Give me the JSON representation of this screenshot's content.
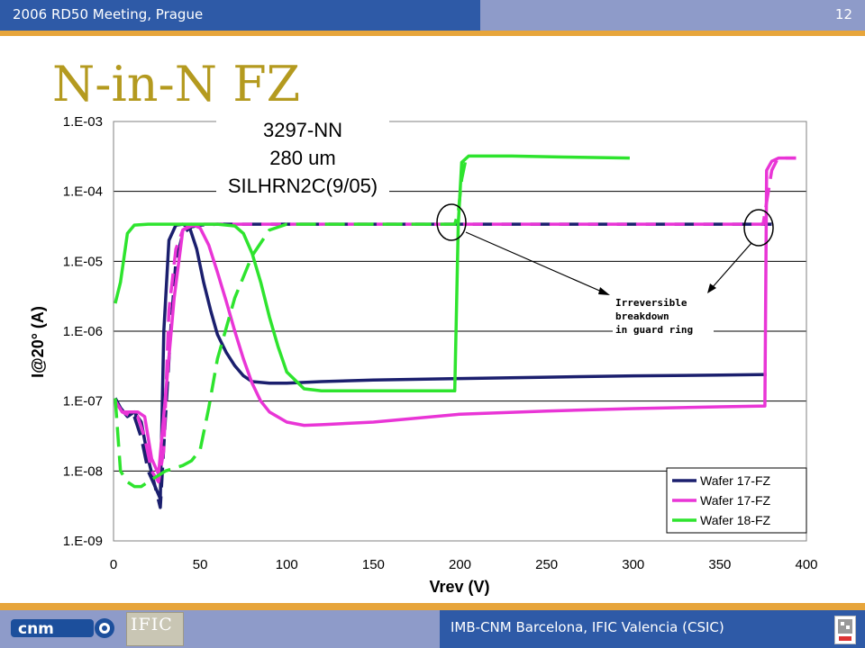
{
  "header": {
    "title": "2006 RD50 Meeting, Prague",
    "slide_number": "12"
  },
  "slide": {
    "title": "N-in-N FZ"
  },
  "footer": {
    "text": "IMB-CNM Barcelona, IFIC Valencia (CSIC)",
    "logo_left": "cnm",
    "logo_mid": "IFIC"
  },
  "colors": {
    "navy": "#1b1f6e",
    "magenta": "#e935d6",
    "green": "#2ee42e",
    "header_blue": "#2e5aa7",
    "header_light": "#8e9bc9",
    "stripe_orange": "#e7a53b",
    "title_gold": "#b49a1f"
  },
  "chart_data": {
    "type": "line",
    "xlabel": "Vrev (V)",
    "ylabel": "I@20° (A)",
    "xlim": [
      0,
      400
    ],
    "ylim": [
      1e-09,
      0.001
    ],
    "yscale": "log",
    "xticks": [
      "0",
      "50",
      "100",
      "150",
      "200",
      "250",
      "300",
      "350",
      "400"
    ],
    "yticks": [
      "1.E-09",
      "1.E-08",
      "1.E-07",
      "1.E-06",
      "1.E-05",
      "1.E-04",
      "1.E-03"
    ],
    "grid": "horizontal",
    "legend_position": "bottom-right",
    "box_labels": [
      "3297-NN",
      "280 um",
      "SILHRN2C(9/05)"
    ],
    "annotation": [
      "Irreversible",
      "breakdown",
      "in guard ring"
    ],
    "series": [
      {
        "name": "Wafer 17-FZ",
        "color": "#1b1f6e",
        "style": "solid",
        "x": [
          1,
          4,
          8,
          12,
          16,
          20,
          24,
          27,
          29,
          32,
          36,
          40,
          44,
          48,
          52,
          56,
          60,
          65,
          70,
          75,
          80,
          90,
          100,
          120,
          150,
          200,
          250,
          300,
          350,
          377
        ],
        "y": [
          1.1e-07,
          8e-08,
          6e-08,
          7e-08,
          5e-08,
          1.5e-08,
          6e-09,
          4e-09,
          1e-06,
          2e-05,
          3.3e-05,
          3.4e-05,
          3e-05,
          1.5e-05,
          5e-06,
          2e-06,
          9e-07,
          5e-07,
          3.2e-07,
          2.3e-07,
          1.9e-07,
          1.8e-07,
          1.8e-07,
          1.9e-07,
          2e-07,
          2.1e-07,
          2.2e-07,
          2.3e-07,
          2.35e-07,
          2.4e-07
        ]
      },
      {
        "name": "Wafer 17-FZ",
        "color": "#1b1f6e",
        "style": "dashed",
        "x": [
          1,
          4,
          8,
          12,
          16,
          20,
          24,
          27,
          30,
          33,
          36,
          40,
          45,
          50,
          60,
          80,
          100,
          150,
          200,
          250,
          300,
          350,
          380
        ],
        "y": [
          1.1e-07,
          8e-08,
          6e-08,
          6e-08,
          3e-08,
          1e-08,
          6e-09,
          3e-09,
          6e-08,
          1e-06,
          1e-05,
          2.5e-05,
          3.1e-05,
          3.3e-05,
          3.4e-05,
          3.4e-05,
          3.4e-05,
          3.4e-05,
          3.4e-05,
          3.4e-05,
          3.4e-05,
          3.4e-05,
          3.4e-05
        ]
      },
      {
        "name": "Wafer 17-FZ",
        "color": "#e935d6",
        "style": "solid",
        "x": [
          1,
          5,
          10,
          14,
          18,
          22,
          26,
          30,
          35,
          40,
          45,
          50,
          55,
          60,
          65,
          70,
          75,
          80,
          85,
          90,
          100,
          110,
          120,
          150,
          200,
          250,
          300,
          350,
          376,
          377,
          380,
          384,
          390,
          394
        ],
        "y": [
          1e-07,
          7e-08,
          7e-08,
          7e-08,
          6e-08,
          1.5e-08,
          9e-09,
          1.2e-07,
          3e-06,
          2.8e-05,
          3.4e-05,
          3e-05,
          1.7e-05,
          7e-06,
          2.7e-06,
          1e-06,
          4e-07,
          1.8e-07,
          1e-07,
          7e-08,
          5e-08,
          4.5e-08,
          4.6e-08,
          5e-08,
          6.5e-08,
          7.2e-08,
          7.8e-08,
          8.3e-08,
          8.5e-08,
          0.0002,
          0.00027,
          0.0003,
          0.0003,
          0.0003
        ]
      },
      {
        "name": "Wafer 17-FZ",
        "color": "#e935d6",
        "style": "dashed",
        "x": [
          1,
          5,
          10,
          14,
          18,
          22,
          26,
          29,
          32,
          36,
          40,
          45,
          50,
          55,
          60,
          70,
          100,
          150,
          200,
          250,
          300,
          350,
          375,
          380,
          383,
          388,
          394
        ],
        "y": [
          1e-07,
          7e-08,
          6e-08,
          6e-08,
          3e-08,
          1e-08,
          7e-09,
          2e-08,
          2e-06,
          1.5e-05,
          2.8e-05,
          3.2e-05,
          3.4e-05,
          3.4e-05,
          3.4e-05,
          3.4e-05,
          3.4e-05,
          3.4e-05,
          3.4e-05,
          3.4e-05,
          3.4e-05,
          3.4e-05,
          3.4e-05,
          0.0002,
          0.00028,
          0.0003,
          0.0003
        ]
      },
      {
        "name": "Wafer 18-FZ",
        "color": "#2ee42e",
        "style": "solid",
        "x": [
          1,
          4,
          8,
          12,
          20,
          40,
          60,
          70,
          75,
          80,
          85,
          90,
          95,
          100,
          110,
          120,
          130,
          150,
          180,
          197,
          199,
          201,
          205,
          230,
          260,
          298
        ],
        "y": [
          2.5e-06,
          5e-06,
          2.5e-05,
          3.3e-05,
          3.4e-05,
          3.4e-05,
          3.4e-05,
          3.2e-05,
          2.5e-05,
          1.3e-05,
          5e-06,
          1.6e-06,
          6e-07,
          2.6e-07,
          1.5e-07,
          1.4e-07,
          1.4e-07,
          1.4e-07,
          1.4e-07,
          1.4e-07,
          3.4e-05,
          0.00026,
          0.00032,
          0.00032,
          0.00031,
          0.0003
        ]
      },
      {
        "name": "Wafer 18-FZ",
        "color": "#2ee42e",
        "style": "dashed",
        "x": [
          1,
          4,
          8,
          12,
          16,
          20,
          30,
          40,
          45,
          50,
          55,
          60,
          70,
          80,
          90,
          100,
          150,
          197,
          199,
          201,
          203
        ],
        "y": [
          1.1e-07,
          1e-08,
          7e-09,
          6e-09,
          6e-09,
          7e-09,
          1e-08,
          1.2e-08,
          1.4e-08,
          2e-08,
          8e-08,
          4e-07,
          3e-06,
          1.2e-05,
          2.8e-05,
          3.4e-05,
          3.4e-05,
          3.4e-05,
          5e-05,
          0.00015,
          0.00026
        ]
      }
    ],
    "legend": [
      {
        "label": "Wafer 17-FZ",
        "color": "#1b1f6e"
      },
      {
        "label": "Wafer 17-FZ",
        "color": "#e935d6"
      },
      {
        "label": "Wafer 18-FZ",
        "color": "#2ee42e"
      }
    ]
  }
}
